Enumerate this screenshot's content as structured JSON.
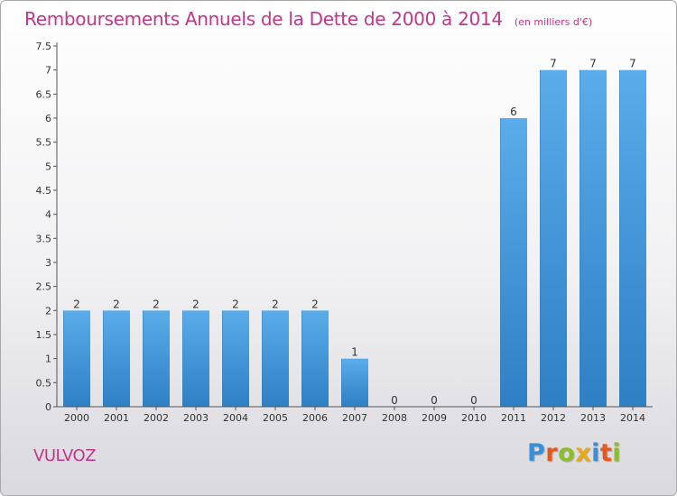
{
  "header": {
    "title": "Remboursements Annuels de la Dette de 2000 à 2014",
    "subtitle": "(en milliers d'€)"
  },
  "footer": {
    "city": "VULVOZ",
    "logo_letters": [
      {
        "ch": "P",
        "color": "#3a8fd8"
      },
      {
        "ch": "r",
        "color": "#e35a1c"
      },
      {
        "ch": "o",
        "color": "#8cbd2b"
      },
      {
        "ch": "x",
        "color": "#e8a81a"
      },
      {
        "ch": "i",
        "color": "#3a8fd8"
      },
      {
        "ch": "t",
        "color": "#e35a1c"
      },
      {
        "ch": "i",
        "color": "#8cbd2b"
      }
    ]
  },
  "chart_data": {
    "type": "bar",
    "categories": [
      "2000",
      "2001",
      "2002",
      "2003",
      "2004",
      "2005",
      "2006",
      "2007",
      "2008",
      "2009",
      "2010",
      "2011",
      "2012",
      "2013",
      "2014"
    ],
    "values": [
      2,
      2,
      2,
      2,
      2,
      2,
      2,
      1,
      0,
      0,
      0,
      6,
      7,
      7,
      7
    ],
    "data_labels": [
      "2",
      "2",
      "2",
      "2",
      "2",
      "2",
      "2",
      "1",
      "0",
      "0",
      "0",
      "6",
      "7",
      "7",
      "7"
    ],
    "y_ticks": [
      "0",
      "0.5",
      "1",
      "1.5",
      "2",
      "2.5",
      "3",
      "3.5",
      "4",
      "4.5",
      "5",
      "5.5",
      "6",
      "6.5",
      "7",
      "7.5"
    ],
    "ylim": [
      0,
      7.5
    ],
    "title": "Remboursements Annuels de la Dette de 2000 à 2014",
    "xlabel": "",
    "ylabel": "",
    "grid": false,
    "bar_color": "#4a9fe0",
    "bar_color_dark": "#2f7fc4"
  }
}
